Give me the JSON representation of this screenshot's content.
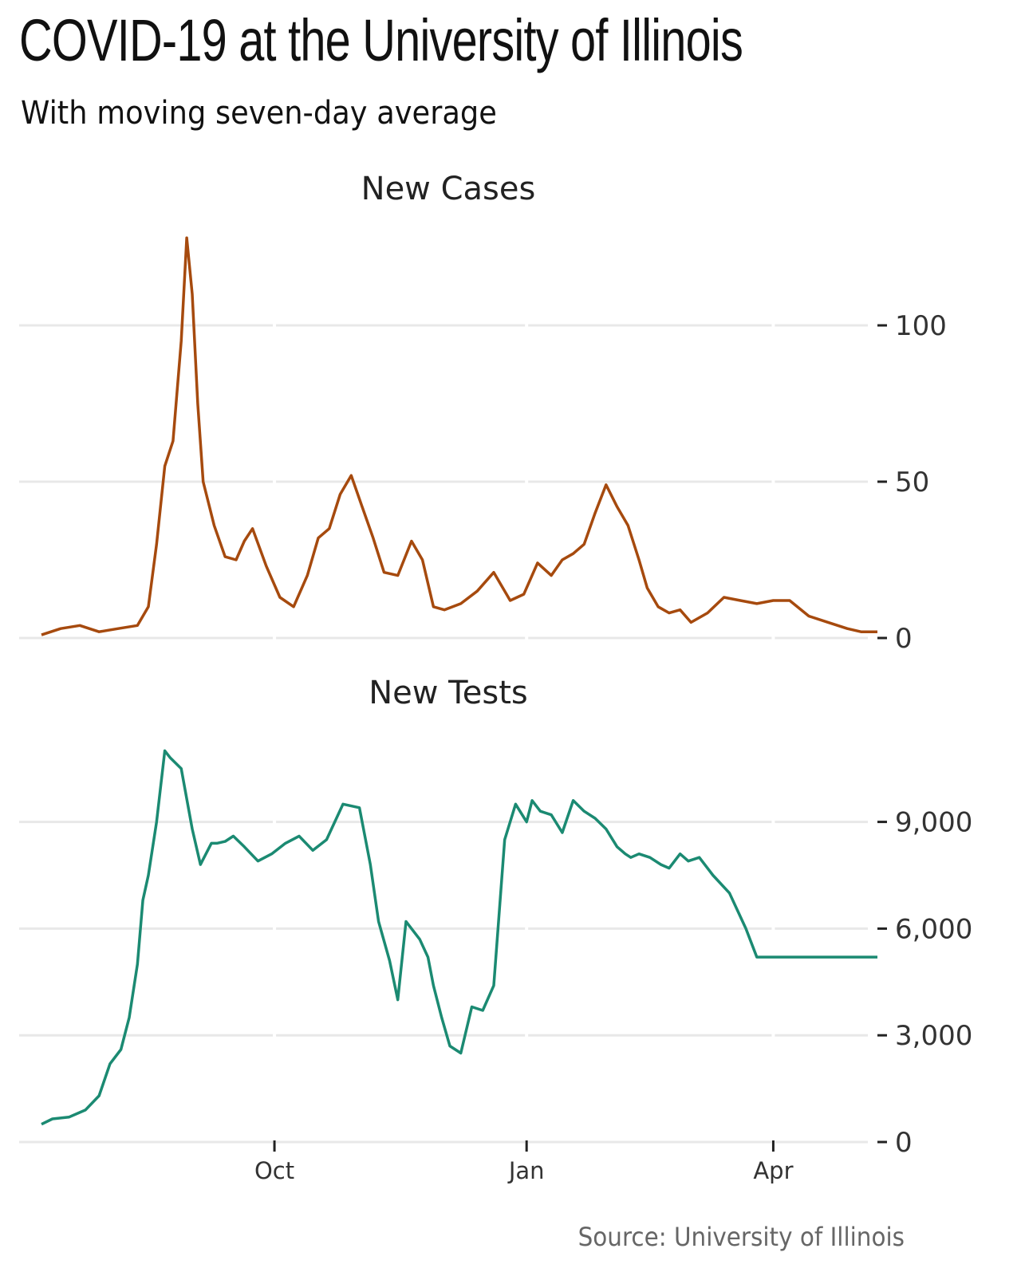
{
  "title": "COVID-19 at the University of Illinois",
  "subtitle": "With moving seven-day average",
  "source": "Source: University of Illinois",
  "chart_data": [
    {
      "type": "line",
      "title": "New Cases",
      "color": "#a64a0e",
      "x_ticks": [
        "Oct",
        "Jan",
        "Apr"
      ],
      "y_ticks": [
        "0",
        "50",
        "100"
      ],
      "ylim": [
        0,
        128
      ],
      "x": [
        "2020-07-08",
        "2020-07-15",
        "2020-07-22",
        "2020-07-29",
        "2020-08-05",
        "2020-08-12",
        "2020-08-16",
        "2020-08-19",
        "2020-08-22",
        "2020-08-25",
        "2020-08-28",
        "2020-08-30",
        "2020-09-01",
        "2020-09-03",
        "2020-09-05",
        "2020-09-09",
        "2020-09-13",
        "2020-09-17",
        "2020-09-20",
        "2020-09-23",
        "2020-09-28",
        "2020-10-03",
        "2020-10-08",
        "2020-10-13",
        "2020-10-17",
        "2020-10-21",
        "2020-10-25",
        "2020-10-29",
        "2020-11-02",
        "2020-11-06",
        "2020-11-10",
        "2020-11-15",
        "2020-11-20",
        "2020-11-24",
        "2020-11-28",
        "2020-12-02",
        "2020-12-08",
        "2020-12-14",
        "2020-12-20",
        "2020-12-26",
        "2020-12-31",
        "2021-01-05",
        "2021-01-10",
        "2021-01-14",
        "2021-01-18",
        "2021-01-22",
        "2021-01-26",
        "2021-01-30",
        "2021-02-03",
        "2021-02-07",
        "2021-02-11",
        "2021-02-14",
        "2021-02-18",
        "2021-02-22",
        "2021-02-26",
        "2021-03-02",
        "2021-03-08",
        "2021-03-14",
        "2021-03-20",
        "2021-03-26",
        "2021-04-01",
        "2021-04-07",
        "2021-04-14",
        "2021-04-21",
        "2021-04-28",
        "2021-05-03",
        "2021-05-09"
      ],
      "values": [
        1,
        3,
        4,
        2,
        3,
        4,
        10,
        30,
        55,
        63,
        95,
        128,
        110,
        75,
        50,
        36,
        26,
        25,
        31,
        35,
        23,
        13,
        10,
        20,
        32,
        35,
        46,
        52,
        42,
        32,
        21,
        20,
        31,
        25,
        10,
        9,
        11,
        15,
        21,
        12,
        14,
        24,
        20,
        25,
        27,
        30,
        40,
        49,
        42,
        36,
        25,
        16,
        10,
        8,
        9,
        5,
        8,
        13,
        12,
        11,
        12,
        12,
        7,
        5,
        3,
        2,
        2
      ]
    },
    {
      "type": "line",
      "title": "New Tests",
      "color": "#1b8a72",
      "x_ticks": [
        "Oct",
        "Jan",
        "Apr"
      ],
      "y_ticks": [
        "0",
        "3,000",
        "6,000",
        "9,000"
      ],
      "ylim": [
        0,
        11000
      ],
      "x": [
        "2020-07-08",
        "2020-07-12",
        "2020-07-18",
        "2020-07-24",
        "2020-07-29",
        "2020-08-02",
        "2020-08-06",
        "2020-08-09",
        "2020-08-12",
        "2020-08-14",
        "2020-08-16",
        "2020-08-19",
        "2020-08-22",
        "2020-08-24",
        "2020-08-28",
        "2020-09-01",
        "2020-09-04",
        "2020-09-08",
        "2020-09-10",
        "2020-09-13",
        "2020-09-16",
        "2020-09-20",
        "2020-09-25",
        "2020-09-30",
        "2020-10-05",
        "2020-10-10",
        "2020-10-15",
        "2020-10-20",
        "2020-10-26",
        "2020-11-01",
        "2020-11-05",
        "2020-11-08",
        "2020-11-12",
        "2020-11-15",
        "2020-11-18",
        "2020-11-20",
        "2020-11-23",
        "2020-11-26",
        "2020-11-28",
        "2020-12-01",
        "2020-12-04",
        "2020-12-08",
        "2020-12-12",
        "2020-12-16",
        "2020-12-20",
        "2020-12-24",
        "2020-12-28",
        "2021-01-01",
        "2021-01-03",
        "2021-01-06",
        "2021-01-10",
        "2021-01-14",
        "2021-01-18",
        "2021-01-22",
        "2021-01-26",
        "2021-01-30",
        "2021-02-03",
        "2021-02-06",
        "2021-02-08",
        "2021-02-11",
        "2021-02-15",
        "2021-02-19",
        "2021-02-22",
        "2021-02-26",
        "2021-03-01",
        "2021-03-05",
        "2021-03-10",
        "2021-03-16",
        "2021-03-22",
        "2021-03-26",
        "2021-03-31",
        "2021-04-04",
        "2021-04-09",
        "2021-04-13",
        "2021-04-17",
        "2021-04-22",
        "2021-04-27",
        "2021-05-02",
        "2021-05-06",
        "2021-05-09"
      ],
      "values": [
        500,
        650,
        700,
        900,
        1300,
        2200,
        2600,
        3500,
        5000,
        6800,
        7500,
        9000,
        11000,
        10800,
        10500,
        8800,
        7800,
        8400,
        8400,
        8450,
        8600,
        8300,
        7900,
        8100,
        8400,
        8600,
        8200,
        8500,
        9500,
        9400,
        7800,
        6200,
        5100,
        4000,
        6200,
        6000,
        5700,
        5200,
        4400,
        3500,
        2700,
        2500,
        3800,
        3700,
        4400,
        8500,
        9500,
        9000,
        9600,
        9300,
        9200,
        8700,
        9600,
        9300,
        9100,
        8800,
        8300,
        8100,
        8000,
        8100,
        8000,
        7800,
        7700,
        8100,
        7900,
        8000,
        7500,
        7000,
        6000,
        5200,
        5200,
        5200,
        5200,
        5200,
        5200,
        5200,
        5200,
        5200,
        5200,
        5200
      ]
    }
  ]
}
